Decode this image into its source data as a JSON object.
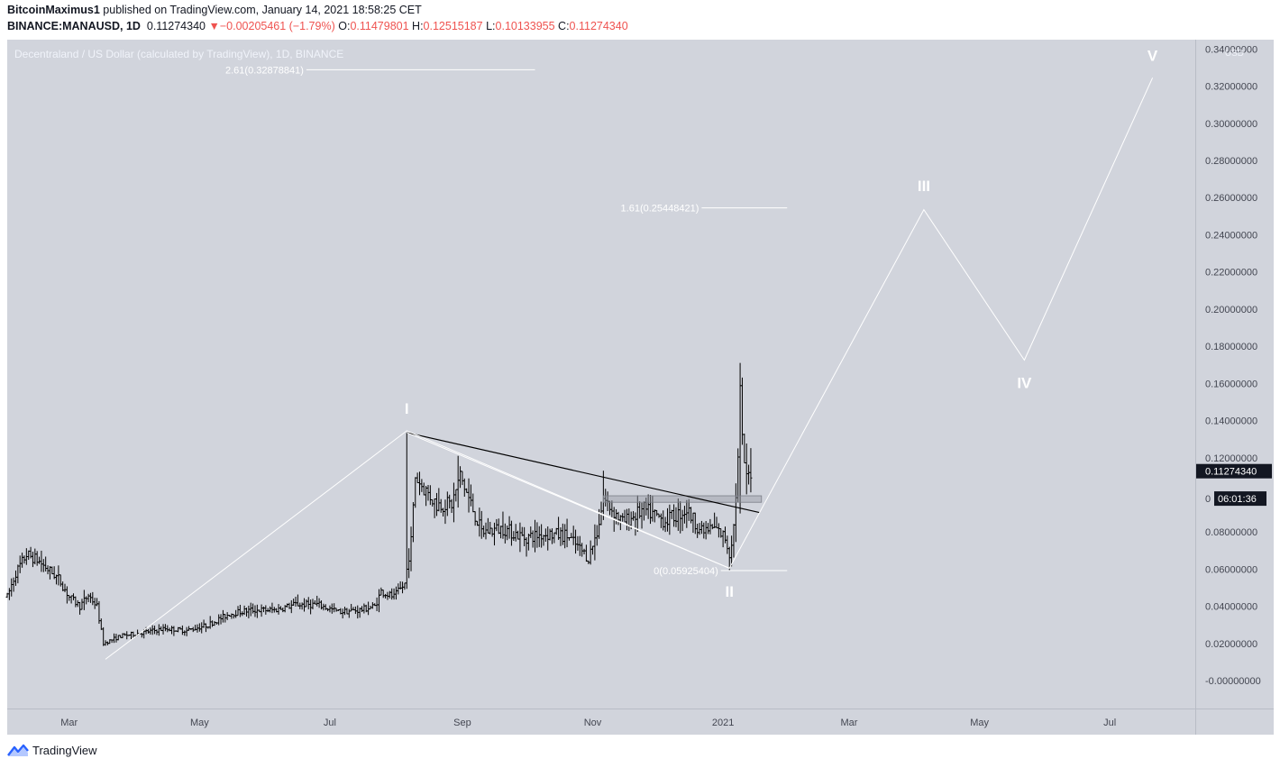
{
  "header": {
    "author": "BitcoinMaximus1",
    "published_text": "published on TradingView.com, January 14, 2021 18:58:25 CET",
    "symbol": "BINANCE:MANAUSD, 1D",
    "last_price": "0.11274340",
    "change_arrow": "▼",
    "change": "−0.00205461 (−1.79%)",
    "o_label": "O:",
    "o_value": "0.11479801",
    "h_label": "H:",
    "h_value": "0.12515187",
    "l_label": "L:",
    "l_value": "0.10133955",
    "c_label": "C:",
    "c_value": "0.11274340"
  },
  "pane_title": "Decentraland / US Dollar (calculated by TradingView), 1D, BINANCE",
  "footer": {
    "brand": "TradingView"
  },
  "colors": {
    "background": "#d1d4dc",
    "bars": "#000000",
    "overlay": "#ffffff",
    "down": "#ef5350",
    "label_bg": "#131722"
  },
  "chart_data": {
    "type": "ohlc-bar",
    "currency": "USD",
    "y_ticks": [
      "0.34000000",
      "0.32000000",
      "0.30000000",
      "0.28000000",
      "0.26000000",
      "0.24000000",
      "0.22000000",
      "0.20000000",
      "0.18000000",
      "0.16000000",
      "0.14000000",
      "0.12000000",
      "0.08000000",
      "0.06000000",
      "0.04000000",
      "0.02000000",
      "-0.00000000"
    ],
    "y_tick_values": [
      0.34,
      0.32,
      0.3,
      0.28,
      0.26,
      0.24,
      0.22,
      0.2,
      0.18,
      0.16,
      0.14,
      0.12,
      0.08,
      0.06,
      0.04,
      0.02,
      0.0
    ],
    "ylim": [
      -0.015,
      0.345
    ],
    "x_ticks": [
      {
        "label": "Mar",
        "date": "2020-03-01"
      },
      {
        "label": "May",
        "date": "2020-05-01"
      },
      {
        "label": "Jul",
        "date": "2020-07-01"
      },
      {
        "label": "Sep",
        "date": "2020-09-01"
      },
      {
        "label": "Nov",
        "date": "2020-11-01"
      },
      {
        "label": "2021",
        "date": "2021-01-01"
      },
      {
        "label": "Mar",
        "date": "2021-03-01"
      },
      {
        "label": "May",
        "date": "2021-05-01"
      },
      {
        "label": "Jul",
        "date": "2021-07-01"
      }
    ],
    "xlim": [
      "2020-02-01",
      "2021-08-10"
    ],
    "current_price_label": "0.11274340",
    "current_price_value": 0.11274,
    "countdown_label": "06:01:36",
    "countdown_value_row": "0",
    "countdown_y": 0.098,
    "price_anchors": [
      [
        "2020-02-01",
        0.045
      ],
      [
        "2020-02-05",
        0.058
      ],
      [
        "2020-02-10",
        0.068
      ],
      [
        "2020-02-15",
        0.065
      ],
      [
        "2020-02-20",
        0.06
      ],
      [
        "2020-02-25",
        0.055
      ],
      [
        "2020-03-01",
        0.045
      ],
      [
        "2020-03-06",
        0.04
      ],
      [
        "2020-03-10",
        0.046
      ],
      [
        "2020-03-14",
        0.04
      ],
      [
        "2020-03-17",
        0.02
      ],
      [
        "2020-03-25",
        0.024
      ],
      [
        "2020-04-05",
        0.026
      ],
      [
        "2020-04-15",
        0.028
      ],
      [
        "2020-04-25",
        0.027
      ],
      [
        "2020-05-05",
        0.03
      ],
      [
        "2020-05-15",
        0.036
      ],
      [
        "2020-05-25",
        0.038
      ],
      [
        "2020-06-05",
        0.038
      ],
      [
        "2020-06-15",
        0.041
      ],
      [
        "2020-06-25",
        0.041
      ],
      [
        "2020-07-05",
        0.037
      ],
      [
        "2020-07-15",
        0.038
      ],
      [
        "2020-07-22",
        0.04
      ],
      [
        "2020-07-25",
        0.048
      ],
      [
        "2020-07-31",
        0.045
      ],
      [
        "2020-08-05",
        0.052
      ],
      [
        "2020-08-08",
        0.075
      ],
      [
        "2020-08-10",
        0.11
      ],
      [
        "2020-08-13",
        0.105
      ],
      [
        "2020-08-20",
        0.095
      ],
      [
        "2020-08-27",
        0.095
      ],
      [
        "2020-08-31",
        0.11
      ],
      [
        "2020-09-05",
        0.095
      ],
      [
        "2020-09-10",
        0.08
      ],
      [
        "2020-09-20",
        0.082
      ],
      [
        "2020-09-30",
        0.077
      ],
      [
        "2020-10-10",
        0.079
      ],
      [
        "2020-10-20",
        0.078
      ],
      [
        "2020-10-30",
        0.066
      ],
      [
        "2020-11-03",
        0.08
      ],
      [
        "2020-11-06",
        0.098
      ],
      [
        "2020-11-15",
        0.085
      ],
      [
        "2020-11-25",
        0.092
      ],
      [
        "2020-12-05",
        0.086
      ],
      [
        "2020-12-15",
        0.092
      ],
      [
        "2020-12-22",
        0.08
      ],
      [
        "2020-12-28",
        0.082
      ],
      [
        "2021-01-02",
        0.077
      ],
      [
        "2021-01-04",
        0.068
      ],
      [
        "2021-01-06",
        0.083
      ],
      [
        "2021-01-08",
        0.118
      ],
      [
        "2021-01-09",
        0.155
      ],
      [
        "2021-01-10",
        0.128
      ],
      [
        "2021-01-12",
        0.108
      ],
      [
        "2021-01-14",
        0.113
      ]
    ],
    "wave_labels": [
      {
        "label": "I",
        "date": "2020-08-06",
        "value": 0.1465
      },
      {
        "label": "II",
        "date": "2021-01-04",
        "value": 0.048
      },
      {
        "label": "III",
        "date": "2021-04-05",
        "value": 0.2665
      },
      {
        "label": "IV",
        "date": "2021-05-22",
        "value": 0.1605
      },
      {
        "label": "V",
        "date": "2021-07-21",
        "value": 0.3365
      }
    ],
    "wave_path": [
      [
        "2020-03-18",
        0.0115
      ],
      [
        "2020-08-06",
        0.1345
      ],
      [
        "2021-01-04",
        0.0605
      ],
      [
        "2021-04-05",
        0.2535
      ],
      [
        "2021-05-22",
        0.1725
      ],
      [
        "2021-07-21",
        0.3245
      ]
    ],
    "fib_levels": [
      {
        "label": "2.61(0.32878841)",
        "value": 0.32879,
        "from": "2020-06-20",
        "to": "2020-10-05"
      },
      {
        "label": "1.61(0.25448421)",
        "value": 0.25448,
        "from": "2020-12-22",
        "to": "2021-01-31"
      },
      {
        "label": "0(0.05925404)",
        "value": 0.05925,
        "from": "2020-12-31",
        "to": "2021-01-31"
      }
    ],
    "triangle_upper": [
      [
        "2020-08-06",
        0.1335
      ],
      [
        "2021-01-18",
        0.0905
      ]
    ],
    "triangle_lower": [
      [
        "2020-08-06",
        0.1335
      ],
      [
        "2021-01-04",
        0.0605
      ]
    ],
    "support_zone": {
      "from": "2020-11-06",
      "to": "2021-01-19",
      "low": 0.096,
      "high": 0.0995
    }
  }
}
